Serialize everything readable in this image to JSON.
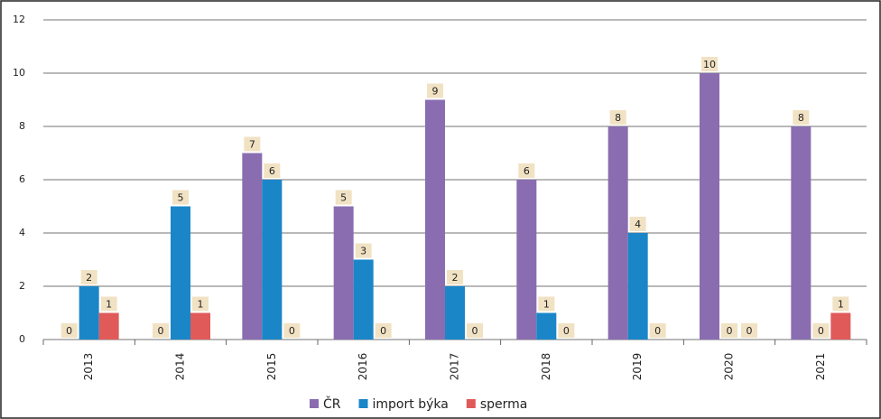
{
  "chart_data": {
    "type": "bar",
    "categories": [
      "2013",
      "2014",
      "2015",
      "2016",
      "2017",
      "2018",
      "2019",
      "2020",
      "2021"
    ],
    "series": [
      {
        "name": "ČR",
        "color": "#8a6db0",
        "values": [
          0,
          0,
          7,
          5,
          9,
          6,
          8,
          10,
          8
        ]
      },
      {
        "name": "import býka",
        "color": "#1a86c8",
        "values": [
          2,
          5,
          6,
          3,
          2,
          1,
          4,
          0,
          0
        ]
      },
      {
        "name": "sperma",
        "color": "#e05a5a",
        "values": [
          1,
          1,
          0,
          0,
          0,
          0,
          0,
          0,
          1
        ]
      }
    ],
    "ylim": [
      0,
      12
    ],
    "yticks": [
      0,
      2,
      4,
      6,
      8,
      10,
      12
    ],
    "grid": true,
    "legend": "bottom"
  }
}
